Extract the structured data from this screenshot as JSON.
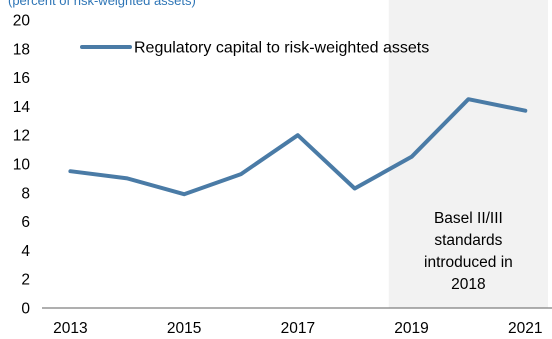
{
  "chart_data": {
    "type": "line",
    "title": "(percent of risk-weighted assets)",
    "xlabel": "",
    "ylabel": "",
    "xlim": [
      2012.5,
      2021.4
    ],
    "ylim": [
      0,
      20
    ],
    "yticks": [
      0,
      2,
      4,
      6,
      8,
      10,
      12,
      14,
      16,
      18,
      20
    ],
    "xticks": [
      2013,
      2015,
      2017,
      2019,
      2021
    ],
    "grid": false,
    "legend_position": "top-left",
    "series": [
      {
        "name": "Regulatory capital to risk-weighted assets",
        "color": "#4A7BA6",
        "x": [
          2013,
          2014,
          2015,
          2016,
          2017,
          2018,
          2019,
          2020,
          2021
        ],
        "y": [
          9.5,
          9.0,
          7.9,
          9.3,
          12.0,
          8.3,
          10.5,
          14.5,
          13.7
        ]
      }
    ],
    "shaded_region": {
      "x_start": 2018.6,
      "x_end": 2021.4,
      "color": "#F2F2F2",
      "label_lines": [
        "Basel II/III",
        "standards",
        "introduced in",
        "2018"
      ]
    }
  }
}
